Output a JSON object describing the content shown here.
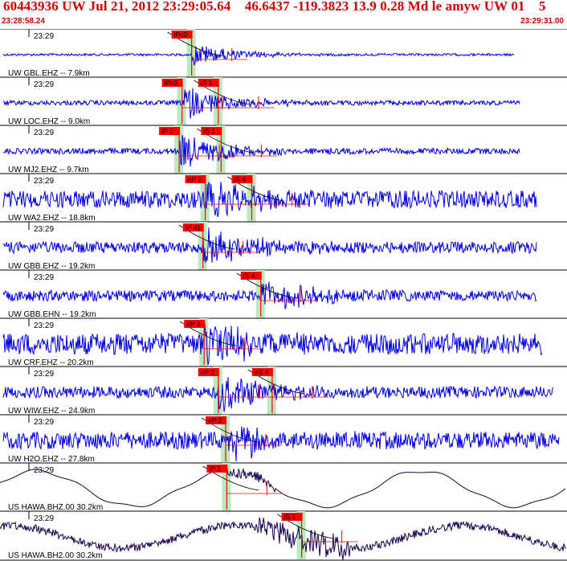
{
  "header": {
    "title": "60443936 UW Jul 21, 2012 23:29:05.64    46.6437 -119.3823 13.9 0.28 Md le amyw UW 01    5",
    "time_start": "23:28:58.24",
    "time_end": "23:29:31.00"
  },
  "colors": {
    "trace": "#0000e0",
    "trace_broadband": "#1a004d",
    "pick": "#ff0000",
    "window": "#bde8bd",
    "header_text": "#d40000",
    "background": "#ffffff"
  },
  "traces": [
    {
      "station": "UW GBL.EHZ -- 7.9km",
      "time": "23:29",
      "amp": 0.35,
      "noise": 0.06,
      "picks": [
        {
          "label": "iPc0",
          "t": 0.338
        }
      ],
      "end_frac": 0.91,
      "kind": "sp"
    },
    {
      "station": "UW LOC.EHZ -- 9.0km",
      "time": "23:29",
      "amp": 0.55,
      "noise": 0.12,
      "picks": [
        {
          "label": "iPc0",
          "t": 0.321
        },
        {
          "label": "iS 1",
          "t": 0.385
        }
      ],
      "end_frac": 0.92,
      "kind": "sp"
    },
    {
      "station": "UW MJ2.EHZ -- 9.7km",
      "time": "23:29",
      "amp": 0.6,
      "noise": 0.15,
      "picks": [
        {
          "label": "iP 1",
          "t": 0.316
        },
        {
          "label": "iS 1",
          "t": 0.39
        }
      ],
      "end_frac": 0.92,
      "kind": "sp"
    },
    {
      "station": "UW WA2.EHZ -- 18.8km",
      "time": "23:29",
      "amp": 0.6,
      "noise": 0.45,
      "picks": [
        {
          "label": "eP 2",
          "t": 0.362
        },
        {
          "label": "iS 4",
          "t": 0.444
        }
      ],
      "end_frac": 0.95,
      "kind": "sp"
    },
    {
      "station": "UW GBB.EHZ -- 19.2km",
      "time": "23:29",
      "amp": 0.6,
      "noise": 0.3,
      "picks": [
        {
          "label": "iP d1",
          "t": 0.358
        }
      ],
      "end_frac": 0.95,
      "kind": "sp"
    },
    {
      "station": "UW GBB.EHN -- 19.2km",
      "time": "23:29",
      "amp": 0.55,
      "noise": 0.28,
      "picks": [
        {
          "label": "iS 4",
          "t": 0.46
        }
      ],
      "end_frac": 0.95,
      "kind": "sp"
    },
    {
      "station": "UW CRF.EHZ -- 20.2km",
      "time": "23:29",
      "amp": 0.65,
      "noise": 0.55,
      "picks": [
        {
          "label": "eP 2",
          "t": 0.36
        }
      ],
      "end_frac": 0.96,
      "kind": "sp"
    },
    {
      "station": "UW WIW.EHZ -- 24.9km",
      "time": "23:29",
      "amp": 0.6,
      "noise": 0.3,
      "picks": [
        {
          "label": "eP 2",
          "t": 0.385
        },
        {
          "label": "eS 4",
          "t": 0.48
        }
      ],
      "end_frac": 0.98,
      "kind": "sp"
    },
    {
      "station": "UW H2O.EHZ -- 27.8km",
      "time": "23:29",
      "amp": 0.6,
      "noise": 0.45,
      "picks": [
        {
          "label": "eP 2",
          "t": 0.398
        }
      ],
      "end_frac": 0.99,
      "kind": "sp"
    },
    {
      "station": "US HAWA.BHZ.00 30.2km",
      "time": "23:29",
      "amp": 0.7,
      "noise": 0.0,
      "picks": [
        {
          "label": "iP 1",
          "t": 0.4
        }
      ],
      "end_frac": 1.0,
      "kind": "bb"
    },
    {
      "station": "US HAWA.BH2.00 30.2km",
      "time": "23:29",
      "amp": 0.6,
      "noise": 0.1,
      "picks": [
        {
          "label": "iS 1",
          "t": 0.532
        }
      ],
      "end_frac": 1.0,
      "kind": "bb2"
    }
  ]
}
